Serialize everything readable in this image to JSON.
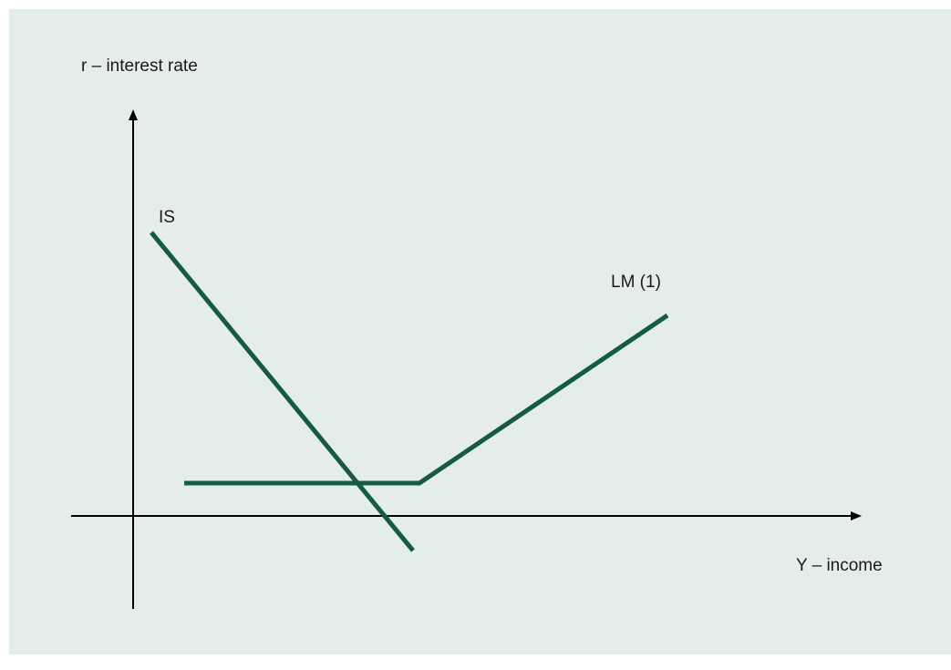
{
  "diagram": {
    "background_color": "#e5ede9",
    "curve_color": "#145a45",
    "axis_color": "#000000",
    "y_axis_label": "r – interest rate",
    "x_axis_label": "Y – income",
    "curves": [
      {
        "id": "is",
        "label": "IS"
      },
      {
        "id": "lm",
        "label": "LM (1)"
      }
    ]
  }
}
